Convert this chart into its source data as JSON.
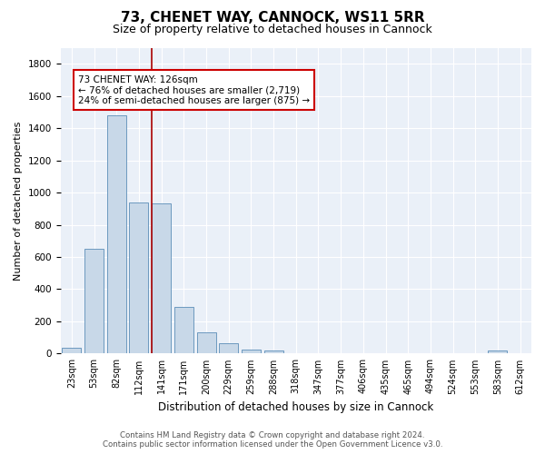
{
  "title": "73, CHENET WAY, CANNOCK, WS11 5RR",
  "subtitle": "Size of property relative to detached houses in Cannock",
  "xlabel": "Distribution of detached houses by size in Cannock",
  "ylabel": "Number of detached properties",
  "categories": [
    "23sqm",
    "53sqm",
    "82sqm",
    "112sqm",
    "141sqm",
    "171sqm",
    "200sqm",
    "229sqm",
    "259sqm",
    "288sqm",
    "318sqm",
    "347sqm",
    "377sqm",
    "406sqm",
    "435sqm",
    "465sqm",
    "494sqm",
    "524sqm",
    "553sqm",
    "583sqm",
    "612sqm"
  ],
  "values": [
    35,
    650,
    1480,
    940,
    935,
    290,
    130,
    65,
    25,
    20,
    5,
    5,
    5,
    5,
    5,
    5,
    5,
    5,
    5,
    20,
    5
  ],
  "bar_color": "#c8d8e8",
  "bar_edge_color": "#5b8db8",
  "vline_x": 3.58,
  "vline_color": "#aa0000",
  "annotation_text": "73 CHENET WAY: 126sqm\n← 76% of detached houses are smaller (2,719)\n24% of semi-detached houses are larger (875) →",
  "annotation_box_color": "#ffffff",
  "annotation_box_edge": "#cc0000",
  "ylim": [
    0,
    1900
  ],
  "background_color": "#eaf0f8",
  "footer_text": "Contains HM Land Registry data © Crown copyright and database right 2024.\nContains public sector information licensed under the Open Government Licence v3.0.",
  "title_fontsize": 11,
  "subtitle_fontsize": 9,
  "ylabel_fontsize": 8,
  "xlabel_fontsize": 8.5,
  "tick_fontsize": 7,
  "ann_fontsize": 7.5
}
